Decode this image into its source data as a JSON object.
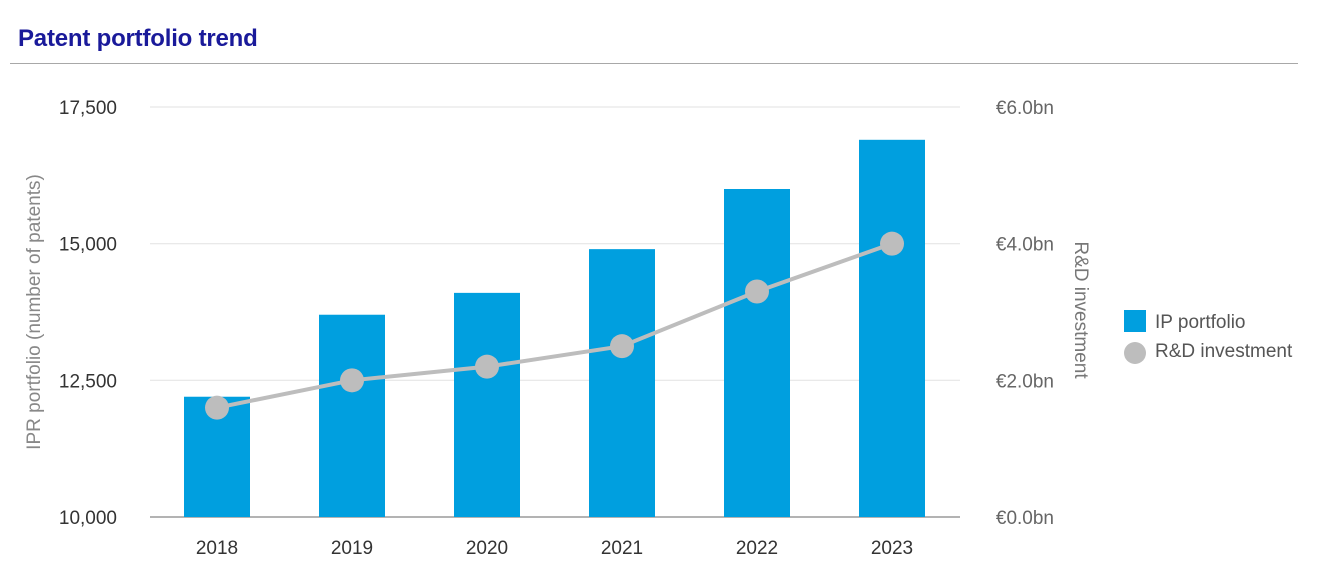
{
  "title": "Patent portfolio trend",
  "chart_data": {
    "type": "bar",
    "categories": [
      "2018",
      "2019",
      "2020",
      "2021",
      "2022",
      "2023"
    ],
    "series": [
      {
        "name": "IP portfolio",
        "type": "bar",
        "axis": "left",
        "color": "#009fdf",
        "values": [
          12200,
          13700,
          14100,
          14900,
          16000,
          16900
        ]
      },
      {
        "name": "R&D investment",
        "type": "line",
        "axis": "right",
        "color": "#bdbdbd",
        "values": [
          1.6,
          2.0,
          2.2,
          2.5,
          3.3,
          4.0
        ]
      }
    ],
    "y_left": {
      "label": "IPR portfolio (number of patents)",
      "ticks": [
        10000,
        12500,
        15000,
        17500
      ],
      "tick_labels": [
        "10,000",
        "12,500",
        "15,000",
        "17,500"
      ],
      "ylim": [
        10000,
        17500
      ]
    },
    "y_right": {
      "label": "R&D investment",
      "ticks": [
        0,
        2,
        4,
        6
      ],
      "tick_labels": [
        "€0.0bn",
        "€2.0bn",
        "€4.0bn",
        "€6.0bn"
      ],
      "ylim": [
        0,
        6
      ]
    },
    "grid": true,
    "legend": {
      "position": "right",
      "entries": [
        "IP portfolio",
        "R&D investment"
      ]
    }
  }
}
